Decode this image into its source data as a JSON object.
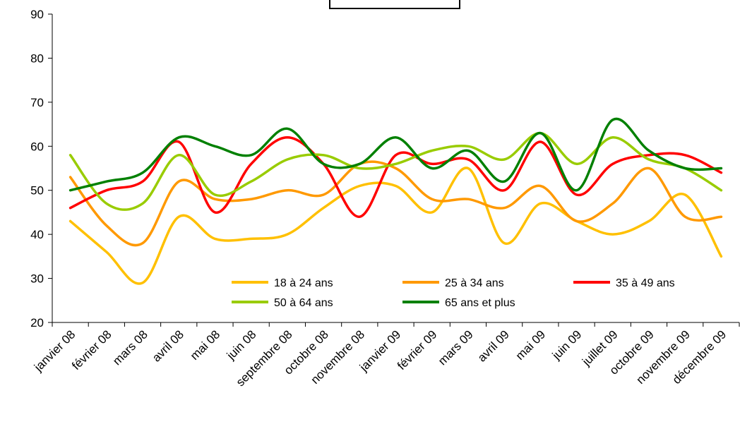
{
  "chart_data": {
    "type": "line",
    "title": "",
    "xlabel": "",
    "ylabel": "",
    "ylim": [
      20,
      90
    ],
    "yticks": [
      20,
      30,
      40,
      50,
      60,
      70,
      80,
      90
    ],
    "grid": false,
    "legend_position": "bottom-center (inside plot)",
    "categories": [
      "janvier 08",
      "février 08",
      "mars 08",
      "avril 08",
      "mai 08",
      "juin 08",
      "septembre 08",
      "octobre 08",
      "novembre 08",
      "janvier 09",
      "février 09",
      "mars 09",
      "avril 09",
      "mai 09",
      "juin 09",
      "juillet 09",
      "octobre 09",
      "novembre 09",
      "décembre 09"
    ],
    "series": [
      {
        "name": "18 à 24 ans",
        "color": "#FFC000",
        "values": [
          43,
          36,
          29,
          44,
          39,
          39,
          40,
          46,
          51,
          51,
          45,
          55,
          38,
          47,
          43,
          40,
          43,
          49,
          35
        ]
      },
      {
        "name": "25 à 34 ans",
        "color": "#FF9900",
        "values": [
          53,
          42,
          38,
          52,
          48,
          48,
          50,
          49,
          56,
          55,
          48,
          48,
          46,
          51,
          43,
          47,
          55,
          44,
          44
        ]
      },
      {
        "name": "35 à 49 ans",
        "color": "#FF0000",
        "values": [
          46,
          50,
          52,
          61,
          45,
          56,
          62,
          56,
          44,
          58,
          56,
          57,
          50,
          61,
          49,
          56,
          58,
          58,
          54
        ]
      },
      {
        "name": "50 à 64 ans",
        "color": "#99CC00",
        "values": [
          58,
          47,
          47,
          58,
          49,
          52,
          57,
          58,
          55,
          56,
          59,
          60,
          57,
          63,
          56,
          62,
          57,
          55,
          50
        ]
      },
      {
        "name": "65 ans et plus",
        "color": "#008000",
        "values": [
          50,
          52,
          54,
          62,
          60,
          58,
          64,
          56,
          56,
          62,
          55,
          59,
          52,
          63,
          50,
          66,
          59,
          55,
          55
        ]
      }
    ]
  }
}
